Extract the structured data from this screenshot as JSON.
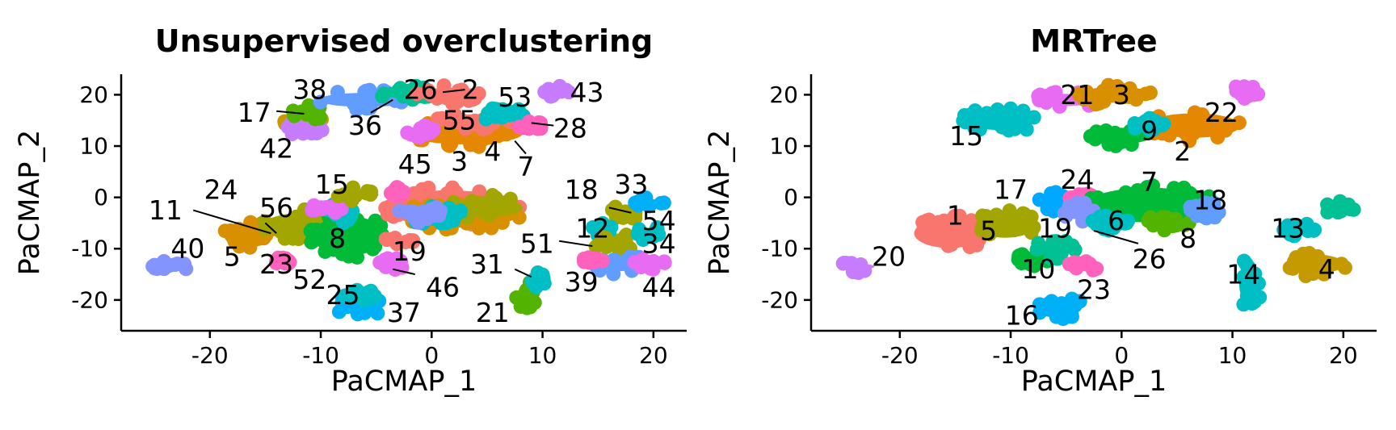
{
  "chart_data": [
    {
      "type": "scatter",
      "title": "Unsupervised overclustering",
      "xlabel": "PaCMAP_1",
      "ylabel": "PaCMAP_2",
      "xlim": [
        -28,
        23
      ],
      "ylim": [
        -26,
        24
      ],
      "xticks": [
        -20,
        -10,
        0,
        10,
        20
      ],
      "yticks": [
        -20,
        -10,
        0,
        10,
        20
      ],
      "grid": false,
      "legend": "none",
      "point_clouds": [
        {
          "cx": -23.8,
          "cy": -13.5,
          "rx": 1.8,
          "ry": 1.2,
          "color": "#8494FF"
        },
        {
          "cx": -16.5,
          "cy": -7.5,
          "rx": 2.5,
          "ry": 2.8,
          "color": "#D89000"
        },
        {
          "cx": -11,
          "cy": -5.5,
          "rx": 4.5,
          "ry": 3.2,
          "color": "#A3A500"
        },
        {
          "cx": -7.5,
          "cy": -7.5,
          "rx": 3.5,
          "ry": 4.5,
          "color": "#00BA38"
        },
        {
          "cx": -13.5,
          "cy": -12.5,
          "rx": 1.0,
          "ry": 0.8,
          "color": "#FF62BC"
        },
        {
          "cx": -6.5,
          "cy": -21,
          "rx": 2.2,
          "ry": 2.5,
          "color": "#00B0F6"
        },
        {
          "cx": -6.5,
          "cy": -19,
          "rx": 1.8,
          "ry": 1.2,
          "color": "#00BFC4"
        },
        {
          "cx": -8,
          "cy": -3,
          "rx": 1.5,
          "ry": 2.0,
          "color": "#00BFC4"
        },
        {
          "cx": -9.5,
          "cy": -2,
          "rx": 1.5,
          "ry": 1.2,
          "color": "#E76BF3"
        },
        {
          "cx": -6.5,
          "cy": 0.5,
          "rx": 2.0,
          "ry": 1.5,
          "color": "#A3A500"
        },
        {
          "cx": -3.5,
          "cy": -13,
          "rx": 1.3,
          "ry": 1.3,
          "color": "#E76BF3"
        },
        {
          "cx": -3,
          "cy": -8.5,
          "rx": 1.5,
          "ry": 1.0,
          "color": "#F8766D"
        },
        {
          "cx": 1.5,
          "cy": -2,
          "rx": 6.5,
          "ry": 4.0,
          "color": "#F8766D"
        },
        {
          "cx": 2.5,
          "cy": -3.5,
          "rx": 5.5,
          "ry": 3.0,
          "color": "#D89000"
        },
        {
          "cx": 5,
          "cy": -2,
          "rx": 3.5,
          "ry": 2.5,
          "color": "#A3A500"
        },
        {
          "cx": 0.5,
          "cy": -3.5,
          "rx": 3.0,
          "ry": 1.8,
          "color": "#00BFC4"
        },
        {
          "cx": -1,
          "cy": -3,
          "rx": 2.0,
          "ry": 2.0,
          "color": "#8494FF"
        },
        {
          "cx": -3,
          "cy": 1,
          "rx": 1.0,
          "ry": 1.0,
          "color": "#FF62BC"
        },
        {
          "cx": -11.5,
          "cy": 14.5,
          "rx": 1.8,
          "ry": 2.0,
          "color": "#C49A00"
        },
        {
          "cx": -11.5,
          "cy": 13.5,
          "rx": 1.8,
          "ry": 1.5,
          "color": "#C77CFF"
        },
        {
          "cx": -11,
          "cy": 16.5,
          "rx": 1.6,
          "ry": 1.5,
          "color": "#53B400"
        },
        {
          "cx": -6,
          "cy": 19,
          "rx": 4.5,
          "ry": 2.0,
          "color": "#619CFF"
        },
        {
          "cx": -2.5,
          "cy": 20.5,
          "rx": 2.5,
          "ry": 1.8,
          "color": "#00C094"
        },
        {
          "cx": 1.5,
          "cy": 20,
          "rx": 3.0,
          "ry": 2.0,
          "color": "#F8766D"
        },
        {
          "cx": 3,
          "cy": 12.5,
          "rx": 5.5,
          "ry": 2.8,
          "color": "#E58700"
        },
        {
          "cx": 4,
          "cy": 15,
          "rx": 4.0,
          "ry": 1.8,
          "color": "#F8766D"
        },
        {
          "cx": -1,
          "cy": 13,
          "rx": 1.3,
          "ry": 1.3,
          "color": "#E76BF3"
        },
        {
          "cx": 6.5,
          "cy": 16,
          "rx": 2.5,
          "ry": 1.5,
          "color": "#00BFC4"
        },
        {
          "cx": 8.5,
          "cy": 14,
          "rx": 1.5,
          "ry": 1.5,
          "color": "#FF62BC"
        },
        {
          "cx": 11,
          "cy": 20.5,
          "rx": 1.5,
          "ry": 1.3,
          "color": "#C77CFF"
        },
        {
          "cx": 17.5,
          "cy": -3,
          "rx": 1.5,
          "ry": 1.5,
          "color": "#A3A500"
        },
        {
          "cx": 15.5,
          "cy": -6.5,
          "rx": 1.3,
          "ry": 1.5,
          "color": "#00BFC4"
        },
        {
          "cx": 16.5,
          "cy": -9,
          "rx": 2.0,
          "ry": 2.0,
          "color": "#A3A500"
        },
        {
          "cx": 19.5,
          "cy": -1,
          "rx": 1.5,
          "ry": 1.3,
          "color": "#00B0F6"
        },
        {
          "cx": 19.5,
          "cy": -7,
          "rx": 1.5,
          "ry": 1.5,
          "color": "#00BFC4"
        },
        {
          "cx": 17,
          "cy": -13,
          "rx": 2.5,
          "ry": 2.0,
          "color": "#619CFF"
        },
        {
          "cx": 19.5,
          "cy": -13,
          "rx": 1.8,
          "ry": 1.5,
          "color": "#E76BF3"
        },
        {
          "cx": 14.5,
          "cy": -12,
          "rx": 1.0,
          "ry": 1.0,
          "color": "#FF62BC"
        },
        {
          "cx": 8.5,
          "cy": -19,
          "rx": 1.0,
          "ry": 3.0,
          "color": "#53B400"
        },
        {
          "cx": 9.5,
          "cy": -16,
          "rx": 0.8,
          "ry": 1.5,
          "color": "#00BFC4"
        }
      ],
      "labels": [
        {
          "text": "38",
          "x": -11,
          "y": 21
        },
        {
          "text": "26",
          "x": -1,
          "y": 21
        },
        {
          "text": "2",
          "x": 3.5,
          "y": 21
        },
        {
          "text": "53",
          "x": 7.5,
          "y": 19.5
        },
        {
          "text": "43",
          "x": 14,
          "y": 20.5
        },
        {
          "text": "17",
          "x": -16,
          "y": 16.5
        },
        {
          "text": "36",
          "x": -6,
          "y": 14
        },
        {
          "text": "55",
          "x": 2.5,
          "y": 15
        },
        {
          "text": "28",
          "x": 12.5,
          "y": 13.5
        },
        {
          "text": "42",
          "x": -14,
          "y": 9.5
        },
        {
          "text": "45",
          "x": -1.5,
          "y": 6.5
        },
        {
          "text": "3",
          "x": 2.5,
          "y": 7
        },
        {
          "text": "4",
          "x": 5.5,
          "y": 9
        },
        {
          "text": "7",
          "x": 8.5,
          "y": 6
        },
        {
          "text": "15",
          "x": -9,
          "y": 2.5
        },
        {
          "text": "18",
          "x": 13.5,
          "y": 1.5
        },
        {
          "text": "33",
          "x": 18,
          "y": 2.5
        },
        {
          "text": "24",
          "x": -19,
          "y": 1.5
        },
        {
          "text": "11",
          "x": -24,
          "y": -2.5
        },
        {
          "text": "56",
          "x": -14,
          "y": -2
        },
        {
          "text": "54",
          "x": 20.5,
          "y": -4.5
        },
        {
          "text": "12",
          "x": 14.5,
          "y": -6
        },
        {
          "text": "8",
          "x": -8.5,
          "y": -8
        },
        {
          "text": "51",
          "x": 9.5,
          "y": -9
        },
        {
          "text": "34",
          "x": 20.5,
          "y": -9
        },
        {
          "text": "40",
          "x": -22,
          "y": -10
        },
        {
          "text": "5",
          "x": -18,
          "y": -11.5
        },
        {
          "text": "19",
          "x": -2,
          "y": -10.5
        },
        {
          "text": "23",
          "x": -14,
          "y": -13
        },
        {
          "text": "31",
          "x": 5,
          "y": -13
        },
        {
          "text": "52",
          "x": -11,
          "y": -16
        },
        {
          "text": "39",
          "x": 13.5,
          "y": -16.5
        },
        {
          "text": "46",
          "x": 1,
          "y": -17.5
        },
        {
          "text": "44",
          "x": 20.5,
          "y": -17.5
        },
        {
          "text": "25",
          "x": -8,
          "y": -19
        },
        {
          "text": "37",
          "x": -2.5,
          "y": -22.5
        },
        {
          "text": "21",
          "x": 5.5,
          "y": -22.5
        }
      ],
      "leaders": [
        {
          "x1": 1,
          "y1": 20.5,
          "x2": 3,
          "y2": 21
        },
        {
          "x1": -14,
          "y1": 16.8,
          "x2": -11.5,
          "y2": 16.3
        },
        {
          "x1": -5.5,
          "y1": 16.5,
          "x2": -3.5,
          "y2": 19
        },
        {
          "x1": 9,
          "y1": 14.5,
          "x2": 11,
          "y2": 14
        },
        {
          "x1": 7.5,
          "y1": 11,
          "x2": 8.5,
          "y2": 8.5
        },
        {
          "x1": 16,
          "y1": -2,
          "x2": 18,
          "y2": -3
        },
        {
          "x1": -21.5,
          "y1": -2.5,
          "x2": -14.5,
          "y2": -7
        },
        {
          "x1": -15,
          "y1": -5,
          "x2": -14,
          "y2": -7
        },
        {
          "x1": 11.5,
          "y1": -8.5,
          "x2": 14.5,
          "y2": -9.5
        },
        {
          "x1": -3.5,
          "y1": -14,
          "x2": -1.5,
          "y2": -15
        },
        {
          "x1": 7.5,
          "y1": -14,
          "x2": 9,
          "y2": -15.5
        }
      ]
    },
    {
      "type": "scatter",
      "title": "MRTree",
      "xlabel": "PaCMAP_1",
      "ylabel": "PaCMAP_2",
      "xlim": [
        -28,
        23
      ],
      "ylim": [
        -26,
        24
      ],
      "xticks": [
        -20,
        -10,
        0,
        10,
        20
      ],
      "yticks": [
        -20,
        -10,
        0,
        10,
        20
      ],
      "grid": false,
      "legend": "none",
      "point_clouds": [
        {
          "cx": -23.8,
          "cy": -13.5,
          "rx": 1.8,
          "ry": 1.2,
          "color": "#C77CFF"
        },
        {
          "cx": -15.5,
          "cy": -7,
          "rx": 3.5,
          "ry": 3.5,
          "color": "#F8766D"
        },
        {
          "cx": -10.5,
          "cy": -5.5,
          "rx": 3.0,
          "ry": 3.0,
          "color": "#A3A500"
        },
        {
          "cx": -8,
          "cy": -12,
          "rx": 2.0,
          "ry": 1.5,
          "color": "#00BA38"
        },
        {
          "cx": -6,
          "cy": -10,
          "rx": 2.0,
          "ry": 2.0,
          "color": "#00C094"
        },
        {
          "cx": -3.5,
          "cy": -13.5,
          "rx": 1.3,
          "ry": 1.3,
          "color": "#FF62BC"
        },
        {
          "cx": -5.5,
          "cy": -21.5,
          "rx": 2.2,
          "ry": 2.2,
          "color": "#00B0F6"
        },
        {
          "cx": -6,
          "cy": -1,
          "rx": 1.5,
          "ry": 2.0,
          "color": "#00A9FF"
        },
        {
          "cx": -3.5,
          "cy": -0.5,
          "rx": 1.3,
          "ry": 1.3,
          "color": "#FF62BC"
        },
        {
          "cx": 2.5,
          "cy": -1.5,
          "rx": 6.0,
          "ry": 4.0,
          "color": "#00BA38"
        },
        {
          "cx": -3.5,
          "cy": -3,
          "rx": 1.8,
          "ry": 2.0,
          "color": "#8494FF"
        },
        {
          "cx": -1,
          "cy": -5,
          "rx": 2.0,
          "ry": 1.5,
          "color": "#00BFC4"
        },
        {
          "cx": 4,
          "cy": -5,
          "rx": 2.5,
          "ry": 1.5,
          "color": "#53B400"
        },
        {
          "cx": 7.5,
          "cy": -2.5,
          "rx": 1.5,
          "ry": 2.0,
          "color": "#619CFF"
        },
        {
          "cx": -11,
          "cy": 15,
          "rx": 3.5,
          "ry": 2.5,
          "color": "#00BFC4"
        },
        {
          "cx": -5,
          "cy": 19,
          "rx": 3.0,
          "ry": 1.8,
          "color": "#E76BF3"
        },
        {
          "cx": -0.5,
          "cy": 20,
          "rx": 3.5,
          "ry": 2.2,
          "color": "#D89000"
        },
        {
          "cx": 6.5,
          "cy": 14,
          "rx": 4.5,
          "ry": 3.0,
          "color": "#E58700"
        },
        {
          "cx": 0,
          "cy": 12,
          "rx": 3.0,
          "ry": 2.2,
          "color": "#00BA38"
        },
        {
          "cx": 2.5,
          "cy": 14,
          "rx": 1.5,
          "ry": 1.5,
          "color": "#00BFC4"
        },
        {
          "cx": 11,
          "cy": 20.5,
          "rx": 1.5,
          "ry": 1.3,
          "color": "#E76BF3"
        },
        {
          "cx": 17.5,
          "cy": -13,
          "rx": 2.8,
          "ry": 2.5,
          "color": "#C49A00"
        },
        {
          "cx": 19.5,
          "cy": -2,
          "rx": 1.5,
          "ry": 1.3,
          "color": "#00C094"
        },
        {
          "cx": 16,
          "cy": -6.5,
          "rx": 1.5,
          "ry": 1.5,
          "color": "#00BFC4"
        },
        {
          "cx": 11.5,
          "cy": -16.5,
          "rx": 1.2,
          "ry": 5.0,
          "color": "#00BFC4"
        }
      ],
      "labels": [
        {
          "text": "21",
          "x": -4,
          "y": 20
        },
        {
          "text": "3",
          "x": 0,
          "y": 20
        },
        {
          "text": "22",
          "x": 9,
          "y": 16.5
        },
        {
          "text": "15",
          "x": -14,
          "y": 12
        },
        {
          "text": "9",
          "x": 2.5,
          "y": 13
        },
        {
          "text": "2",
          "x": 5.5,
          "y": 9
        },
        {
          "text": "24",
          "x": -4,
          "y": 3.5
        },
        {
          "text": "7",
          "x": 2.5,
          "y": 3
        },
        {
          "text": "17",
          "x": -10,
          "y": 1.5
        },
        {
          "text": "18",
          "x": 8,
          "y": -0.5
        },
        {
          "text": "1",
          "x": -15,
          "y": -3.5
        },
        {
          "text": "6",
          "x": -0.5,
          "y": -4.5
        },
        {
          "text": "19",
          "x": -6,
          "y": -6
        },
        {
          "text": "13",
          "x": 15,
          "y": -6
        },
        {
          "text": "5",
          "x": -12,
          "y": -6.5
        },
        {
          "text": "8",
          "x": 6,
          "y": -8
        },
        {
          "text": "26",
          "x": 2.5,
          "y": -12
        },
        {
          "text": "20",
          "x": -21,
          "y": -11.5
        },
        {
          "text": "10",
          "x": -7.5,
          "y": -14
        },
        {
          "text": "4",
          "x": 18.5,
          "y": -14
        },
        {
          "text": "14",
          "x": 11,
          "y": -15
        },
        {
          "text": "23",
          "x": -2.5,
          "y": -18
        },
        {
          "text": "16",
          "x": -9,
          "y": -23
        }
      ],
      "leaders": [
        {
          "x1": -2.5,
          "y1": -6.5,
          "x2": 1.5,
          "y2": -9
        }
      ]
    }
  ]
}
